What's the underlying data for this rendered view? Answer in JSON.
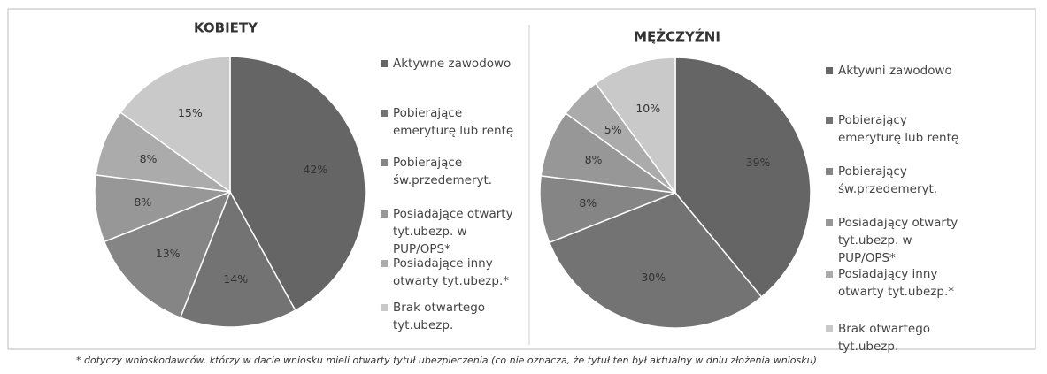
{
  "chart_data": [
    {
      "type": "pie",
      "title": "KOBIETY",
      "categories": [
        "Aktywne zawodowo",
        "Pobierające emeryturę lub rentę",
        "Pobierające św.przedemeryt.",
        "Posiadające otwarty tyt.ubezp. w PUP/OPS*",
        "Posiadające inny otwarty tyt.ubezp.*",
        "Brak otwartego tyt.ubezp."
      ],
      "values": [
        42,
        14,
        13,
        8,
        8,
        15
      ],
      "value_labels": [
        "42%",
        "14%",
        "13%",
        "8%",
        "8%",
        "15%"
      ],
      "colors": [
        "#656565",
        "#737373",
        "#858585",
        "#979797",
        "#ababab",
        "#c9c9c9"
      ]
    },
    {
      "type": "pie",
      "title": "MĘŻCZYŹNI",
      "categories": [
        "Aktywni zawodowo",
        "Pobierający emeryturę lub rentę",
        "Pobierający św.przedemeryt.",
        "Posiadający otwarty tyt.ubezp. w PUP/OPS*",
        "Posiadający inny otwarty tyt.ubezp.*",
        "Brak otwartego tyt.ubezp."
      ],
      "values": [
        39,
        30,
        8,
        8,
        5,
        10
      ],
      "value_labels": [
        "39%",
        "30%",
        "8%",
        "8%",
        "5%",
        "10%"
      ],
      "colors": [
        "#656565",
        "#737373",
        "#858585",
        "#979797",
        "#ababab",
        "#c9c9c9"
      ]
    }
  ],
  "footnote": "* dotyczy wnioskodawców, którzy w dacie wniosku mieli otwarty tytuł ubezpieczenia  (co nie oznacza, że tytuł ten był aktualny w dniu złożenia wniosku)"
}
